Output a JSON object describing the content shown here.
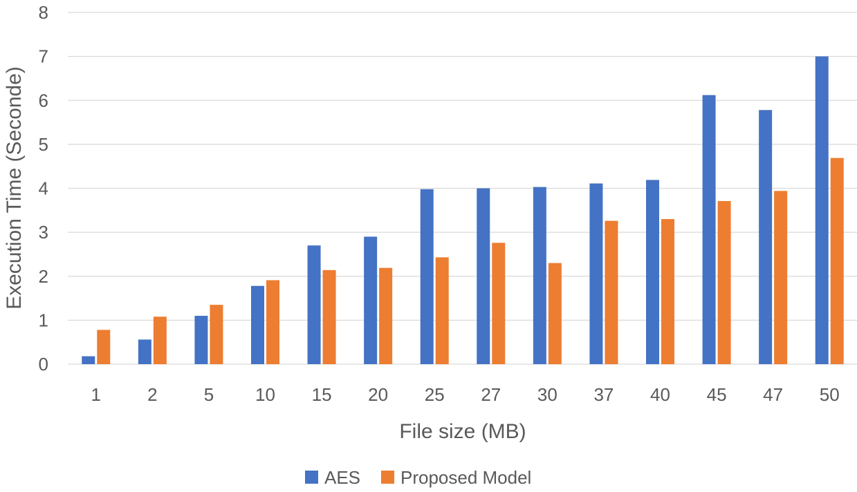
{
  "chart_data": {
    "type": "bar",
    "title": "",
    "xlabel": "File size (MB)",
    "ylabel": "Execution Time (Seconde)",
    "ylim": [
      0,
      8
    ],
    "yticks": [
      0,
      1,
      2,
      3,
      4,
      5,
      6,
      7,
      8
    ],
    "grid": true,
    "legend_position": "bottom",
    "categories": [
      "1",
      "2",
      "5",
      "10",
      "15",
      "20",
      "25",
      "27",
      "30",
      "37",
      "40",
      "45",
      "47",
      "50"
    ],
    "series": [
      {
        "name": "AES",
        "color": "#4472c4",
        "values": [
          0.18,
          0.56,
          1.1,
          1.78,
          2.7,
          2.9,
          3.98,
          4.0,
          4.03,
          4.11,
          4.19,
          6.12,
          5.78,
          7.0
        ]
      },
      {
        "name": "Proposed Model",
        "color": "#ed7d31",
        "values": [
          0.78,
          1.08,
          1.35,
          1.91,
          2.14,
          2.19,
          2.43,
          2.76,
          2.3,
          3.26,
          3.3,
          3.71,
          3.94,
          4.69
        ]
      }
    ]
  }
}
